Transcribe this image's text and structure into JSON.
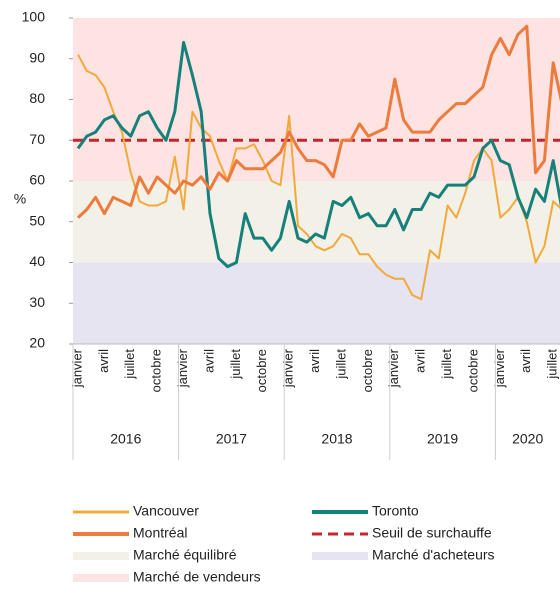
{
  "chart_data": {
    "type": "line",
    "ylabel": "%",
    "categories": [
      "janvier",
      null,
      null,
      "avril",
      null,
      null,
      "juillet",
      null,
      null,
      "octobre",
      null,
      null,
      "janvier",
      null,
      null,
      "avril",
      null,
      null,
      "juillet",
      null,
      null,
      "octobre",
      null,
      null,
      "janvier",
      null,
      null,
      "avril",
      null,
      null,
      "juillet",
      null,
      null,
      "octobre",
      null,
      null,
      "janvier",
      null,
      null,
      "avril",
      null,
      null,
      "juillet",
      null,
      null,
      "octobre",
      null,
      null,
      "janvier",
      null,
      null,
      "avril",
      null,
      null,
      "juillet",
      null
    ],
    "years": [
      "2016",
      "2017",
      "2018",
      "2019",
      "2020"
    ],
    "series": [
      {
        "name": "Vancouver",
        "color": "#f2a93b",
        "values": [
          91,
          87,
          86,
          83,
          77,
          72,
          62,
          55,
          54,
          54,
          55,
          66,
          53,
          77,
          73,
          71,
          65,
          60,
          68,
          68,
          69,
          65,
          60,
          59,
          76,
          49,
          47,
          44,
          43,
          44,
          47,
          46,
          42,
          42,
          39,
          37,
          36,
          36,
          32,
          31,
          43,
          41,
          54,
          51,
          57,
          65,
          68,
          65,
          51,
          53,
          56,
          50,
          40,
          44,
          55,
          53
        ]
      },
      {
        "name": "Toronto",
        "color": "#17807a",
        "values": [
          68,
          71,
          72,
          75,
          76,
          73,
          71,
          76,
          77,
          73,
          70,
          77,
          94,
          86,
          77,
          52,
          41,
          39,
          40,
          52,
          46,
          46,
          43,
          46,
          55,
          46,
          45,
          47,
          46,
          55,
          54,
          56,
          51,
          52,
          49,
          49,
          53,
          48,
          53,
          53,
          57,
          56,
          59,
          59,
          59,
          61,
          68,
          70,
          65,
          64,
          56,
          51,
          58,
          55,
          65,
          53
        ]
      },
      {
        "name": "Montréal",
        "color": "#ec7b3d",
        "values": [
          51,
          53,
          56,
          52,
          56,
          55,
          54,
          61,
          57,
          61,
          59,
          57,
          60,
          59,
          61,
          58,
          62,
          60,
          65,
          63,
          63,
          63,
          65,
          67,
          72,
          68,
          65,
          65,
          64,
          61,
          70,
          70,
          74,
          71,
          72,
          73,
          85,
          75,
          72,
          72,
          72,
          75,
          77,
          79,
          79,
          81,
          83,
          91,
          95,
          91,
          96,
          98,
          62,
          65,
          89,
          79
        ]
      }
    ],
    "threshold": {
      "name": "Seuil de surchauffe",
      "value": 70,
      "color": "#c4262c"
    },
    "bands": [
      {
        "name": "Marché équilibré",
        "from": 40,
        "to": 60,
        "color": "#f3f0e7"
      },
      {
        "name": "Marché d'acheteurs",
        "from": 20,
        "to": 40,
        "color": "#e6e4f0"
      },
      {
        "name": "Marché de vendeurs",
        "from": 60,
        "to": 100,
        "color": "#fde3e1"
      }
    ],
    "ylim": [
      20,
      100
    ],
    "yticks": [
      20,
      30,
      40,
      50,
      60,
      70,
      80,
      90,
      100
    ]
  }
}
